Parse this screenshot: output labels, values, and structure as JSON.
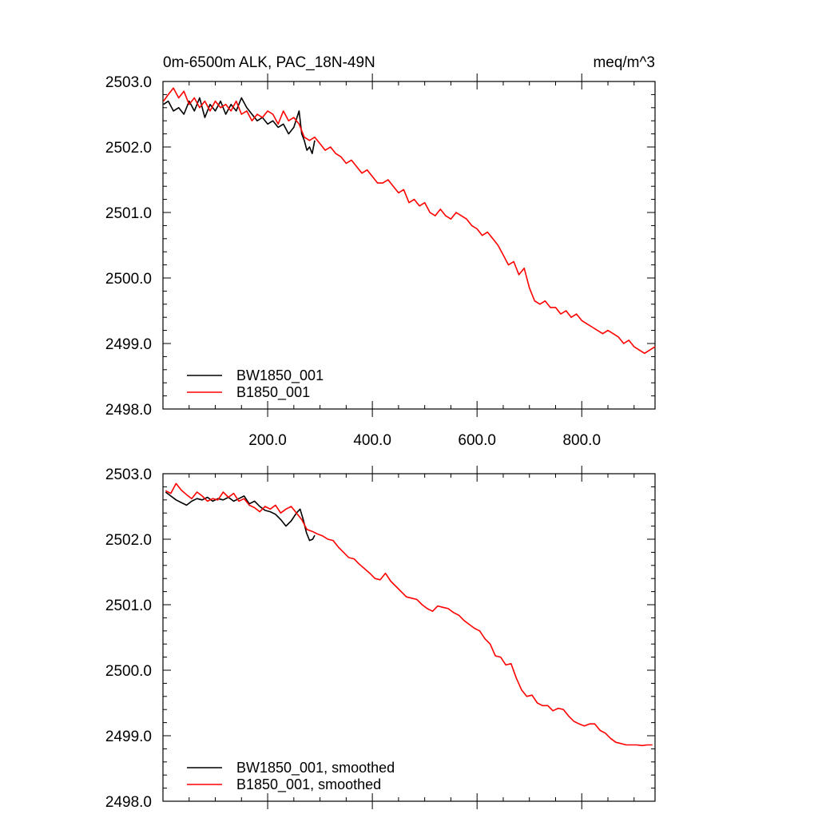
{
  "chart_data": [
    {
      "type": "line",
      "title": "0m-6500m ALK, PAC_18N-49N",
      "units": "meq/m^3",
      "xlabel": "",
      "ylabel": "",
      "xlim": [
        0,
        940
      ],
      "ylim": [
        2498.0,
        2503.0
      ],
      "xticks": [
        200,
        400,
        600,
        800
      ],
      "xtick_labels": [
        "200.0",
        "400.0",
        "600.0",
        "800.0"
      ],
      "yticks": [
        2498,
        2499,
        2500,
        2501,
        2502,
        2503
      ],
      "ytick_labels": [
        "2498.0",
        "2499.0",
        "2500.0",
        "2501.0",
        "2502.0",
        "2503.0"
      ],
      "grid": false,
      "legend_position": "bottom-left",
      "series": [
        {
          "name": "BW1850_001",
          "color": "#000000",
          "x": [
            1,
            10,
            20,
            30,
            40,
            50,
            60,
            70,
            80,
            90,
            100,
            110,
            120,
            130,
            140,
            150,
            160,
            170,
            180,
            190,
            200,
            210,
            220,
            230,
            240,
            250,
            260,
            265,
            270,
            275,
            280,
            285,
            290
          ],
          "y": [
            2502.65,
            2502.7,
            2502.55,
            2502.6,
            2502.5,
            2502.7,
            2502.55,
            2502.75,
            2502.45,
            2502.65,
            2502.55,
            2502.7,
            2502.5,
            2502.65,
            2502.55,
            2502.75,
            2502.6,
            2502.5,
            2502.4,
            2502.45,
            2502.35,
            2502.4,
            2502.3,
            2502.35,
            2502.2,
            2502.3,
            2502.55,
            2502.2,
            2502.1,
            2501.95,
            2502.0,
            2501.9,
            2502.1
          ]
        },
        {
          "name": "B1850_001",
          "color": "#ff0000",
          "x": [
            1,
            10,
            20,
            30,
            40,
            50,
            60,
            70,
            80,
            90,
            100,
            110,
            120,
            130,
            140,
            150,
            160,
            170,
            180,
            190,
            200,
            210,
            220,
            230,
            240,
            250,
            260,
            270,
            280,
            290,
            300,
            310,
            320,
            330,
            340,
            350,
            360,
            370,
            380,
            390,
            400,
            410,
            420,
            430,
            440,
            450,
            460,
            470,
            480,
            490,
            500,
            510,
            520,
            530,
            540,
            550,
            560,
            570,
            580,
            590,
            600,
            610,
            620,
            630,
            640,
            650,
            660,
            670,
            680,
            690,
            700,
            710,
            720,
            730,
            740,
            750,
            760,
            770,
            780,
            790,
            800,
            810,
            820,
            830,
            840,
            850,
            860,
            870,
            880,
            890,
            900,
            910,
            920,
            930,
            940
          ],
          "y": [
            2502.7,
            2502.8,
            2502.9,
            2502.75,
            2502.85,
            2502.65,
            2502.75,
            2502.6,
            2502.7,
            2502.55,
            2502.7,
            2502.6,
            2502.65,
            2502.55,
            2502.7,
            2502.5,
            2502.55,
            2502.4,
            2502.5,
            2502.45,
            2502.55,
            2502.5,
            2502.35,
            2502.55,
            2502.4,
            2502.45,
            2502.35,
            2502.15,
            2502.1,
            2502.15,
            2502.05,
            2501.95,
            2502.0,
            2501.9,
            2501.85,
            2501.75,
            2501.8,
            2501.7,
            2501.6,
            2501.65,
            2501.55,
            2501.45,
            2501.45,
            2501.5,
            2501.4,
            2501.3,
            2501.35,
            2501.15,
            2501.2,
            2501.1,
            2501.15,
            2501.0,
            2500.95,
            2501.05,
            2500.95,
            2500.9,
            2501.0,
            2500.95,
            2500.9,
            2500.8,
            2500.75,
            2500.65,
            2500.7,
            2500.6,
            2500.5,
            2500.35,
            2500.2,
            2500.25,
            2500.05,
            2500.15,
            2499.85,
            2499.65,
            2499.6,
            2499.65,
            2499.55,
            2499.55,
            2499.45,
            2499.5,
            2499.4,
            2499.45,
            2499.35,
            2499.3,
            2499.25,
            2499.2,
            2499.15,
            2499.2,
            2499.15,
            2499.1,
            2499.0,
            2499.05,
            2498.95,
            2498.9,
            2498.85,
            2498.9,
            2498.95
          ]
        }
      ]
    },
    {
      "type": "line",
      "title": "",
      "xlabel": "",
      "ylabel": "",
      "xlim": [
        0,
        940
      ],
      "ylim": [
        2498.0,
        2503.0
      ],
      "xticks": [
        200,
        400,
        600,
        800
      ],
      "yticks": [
        2498,
        2499,
        2500,
        2501,
        2502,
        2503
      ],
      "ytick_labels": [
        "2498.0",
        "2499.0",
        "2500.0",
        "2501.0",
        "2502.0",
        "2503.0"
      ],
      "grid": false,
      "legend_position": "bottom-left",
      "series": [
        {
          "name": "BW1850_001, smoothed",
          "color": "#000000",
          "x": [
            5,
            15,
            25,
            35,
            45,
            55,
            65,
            75,
            85,
            95,
            105,
            115,
            125,
            135,
            145,
            155,
            165,
            175,
            185,
            195,
            205,
            215,
            225,
            235,
            245,
            255,
            262,
            268,
            274,
            280,
            286,
            290
          ],
          "y": [
            2502.72,
            2502.66,
            2502.6,
            2502.56,
            2502.52,
            2502.58,
            2502.62,
            2502.6,
            2502.64,
            2502.58,
            2502.62,
            2502.6,
            2502.64,
            2502.58,
            2502.62,
            2502.66,
            2502.54,
            2502.58,
            2502.5,
            2502.44,
            2502.42,
            2502.38,
            2502.3,
            2502.2,
            2502.28,
            2502.4,
            2502.46,
            2502.3,
            2502.1,
            2501.98,
            2502.0,
            2502.06
          ]
        },
        {
          "name": "B1850_001, smoothed",
          "color": "#ff0000",
          "x": [
            5,
            15,
            25,
            35,
            45,
            55,
            65,
            75,
            85,
            95,
            105,
            115,
            125,
            135,
            145,
            155,
            165,
            175,
            185,
            195,
            205,
            215,
            225,
            235,
            245,
            255,
            265,
            275,
            285,
            295,
            305,
            315,
            325,
            335,
            345,
            355,
            365,
            375,
            385,
            395,
            405,
            415,
            425,
            435,
            445,
            455,
            465,
            475,
            485,
            495,
            505,
            515,
            525,
            535,
            545,
            555,
            565,
            575,
            585,
            595,
            605,
            615,
            625,
            635,
            645,
            655,
            665,
            675,
            685,
            695,
            705,
            715,
            725,
            735,
            745,
            755,
            765,
            775,
            785,
            795,
            805,
            815,
            825,
            835,
            845,
            855,
            865,
            875,
            885,
            895,
            905,
            915,
            925,
            935
          ],
          "y": [
            2502.74,
            2502.7,
            2502.85,
            2502.75,
            2502.68,
            2502.62,
            2502.72,
            2502.66,
            2502.58,
            2502.62,
            2502.6,
            2502.72,
            2502.64,
            2502.7,
            2502.58,
            2502.62,
            2502.52,
            2502.48,
            2502.42,
            2502.5,
            2502.46,
            2502.52,
            2502.4,
            2502.46,
            2502.5,
            2502.4,
            2502.3,
            2502.15,
            2502.12,
            2502.08,
            2502.05,
            2502.0,
            2501.98,
            2501.88,
            2501.8,
            2501.72,
            2501.7,
            2501.62,
            2501.55,
            2501.48,
            2501.4,
            2501.38,
            2501.48,
            2501.36,
            2501.28,
            2501.2,
            2501.12,
            2501.1,
            2501.08,
            2501.0,
            2500.94,
            2500.9,
            2500.98,
            2500.96,
            2500.94,
            2500.88,
            2500.84,
            2500.76,
            2500.7,
            2500.64,
            2500.6,
            2500.48,
            2500.4,
            2500.22,
            2500.2,
            2500.08,
            2500.1,
            2499.88,
            2499.7,
            2499.6,
            2499.62,
            2499.5,
            2499.46,
            2499.46,
            2499.38,
            2499.42,
            2499.4,
            2499.3,
            2499.22,
            2499.18,
            2499.15,
            2499.18,
            2499.18,
            2499.08,
            2499.04,
            2498.96,
            2498.9,
            2498.88,
            2498.86,
            2498.86,
            2498.86,
            2498.85,
            2498.86,
            2498.86
          ]
        }
      ]
    }
  ]
}
